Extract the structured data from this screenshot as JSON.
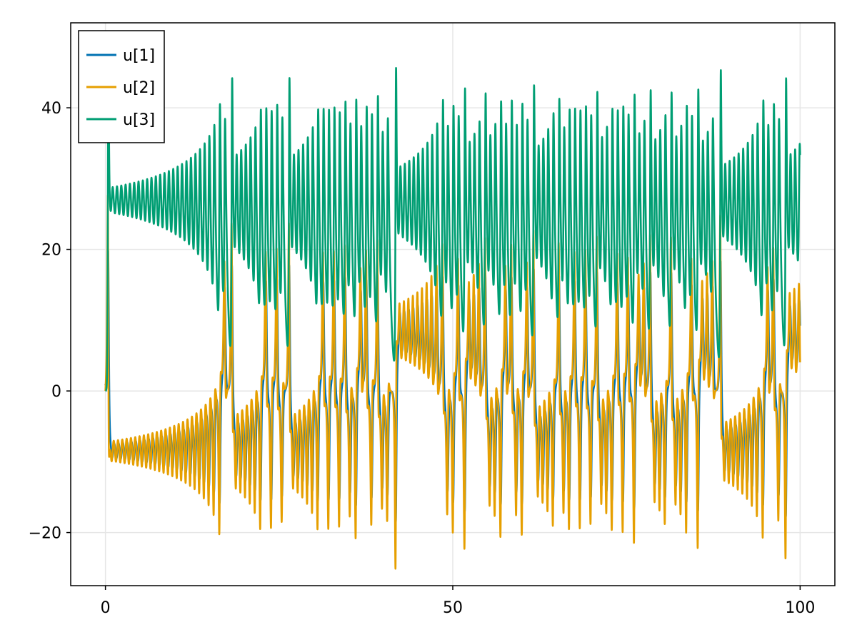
{
  "chart_data": {
    "type": "line",
    "title": "",
    "xlabel": "",
    "ylabel": "",
    "xlim": [
      -5,
      105
    ],
    "ylim": [
      -27.5,
      52
    ],
    "x_ticks": [
      0,
      50,
      100
    ],
    "x_tick_labels": [
      "0",
      "50",
      "100"
    ],
    "y_ticks": [
      -20,
      0,
      20,
      40
    ],
    "y_tick_labels": [
      "−20",
      "0",
      "20",
      "40"
    ],
    "grid": true,
    "legend_position": "top-left",
    "series": [
      {
        "name": "u[1]",
        "color": "#0072b2"
      },
      {
        "name": "u[2]",
        "color": "#e69f00"
      },
      {
        "name": "u[3]",
        "color": "#009e73"
      }
    ],
    "x_range": [
      0,
      100
    ],
    "approx_envelope": {
      "u[1]_and_u[2]": {
        "min": -24,
        "max": 20
      },
      "u[3]": {
        "min": 5,
        "max": 45.5
      }
    }
  }
}
